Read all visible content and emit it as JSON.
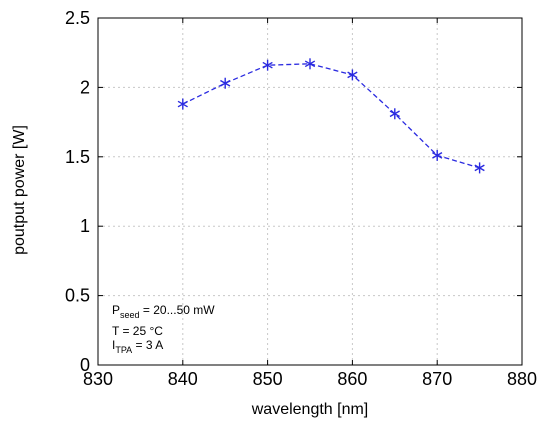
{
  "chart_data": {
    "type": "line",
    "xlabel": "wavelength [nm]",
    "ylabel": "poutput power [W]",
    "xlim": [
      830,
      880
    ],
    "ylim": [
      0,
      2.5
    ],
    "xticks": [
      "830",
      "840",
      "850",
      "860",
      "870",
      "880"
    ],
    "yticks": [
      "0",
      "0.5",
      "1",
      "1.5",
      "2",
      "2.5"
    ],
    "grid": true,
    "line_color": "#2a2ae0",
    "line_style": "dashed",
    "marker": "asterisk",
    "x": [
      840,
      845,
      850,
      855,
      860,
      865,
      870,
      875
    ],
    "y": [
      1.88,
      2.03,
      2.16,
      2.17,
      2.09,
      1.81,
      1.51,
      1.42
    ],
    "annotation": {
      "line1_main": "P",
      "line1_sub": "seed",
      "line1_rest": " = 20...50 mW",
      "line2": "T = 25 °C",
      "line3_main": "I",
      "line3_sub": "TPA",
      "line3_rest": " = 3 A"
    }
  }
}
